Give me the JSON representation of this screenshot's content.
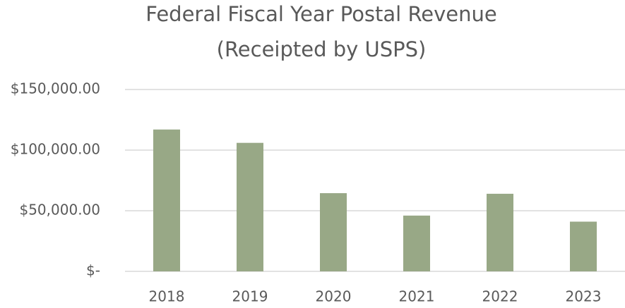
{
  "chart_data": {
    "type": "bar",
    "title": [
      "Federal Fiscal Year Postal Revenue",
      "(Receipted by USPS)"
    ],
    "categories": [
      "2018",
      "2019",
      "2020",
      "2021",
      "2022",
      "2023"
    ],
    "values": [
      117000,
      106000,
      64500,
      46000,
      64000,
      41000
    ],
    "color": "#98a886",
    "ylim": [
      0,
      150000
    ],
    "yticks": [
      {
        "value": 0,
        "label": "$-"
      },
      {
        "value": 50000,
        "label": "$50,000.00"
      },
      {
        "value": 100000,
        "label": "$100,000.00"
      },
      {
        "value": 150000,
        "label": "$150,000.00"
      }
    ],
    "grid": true
  }
}
